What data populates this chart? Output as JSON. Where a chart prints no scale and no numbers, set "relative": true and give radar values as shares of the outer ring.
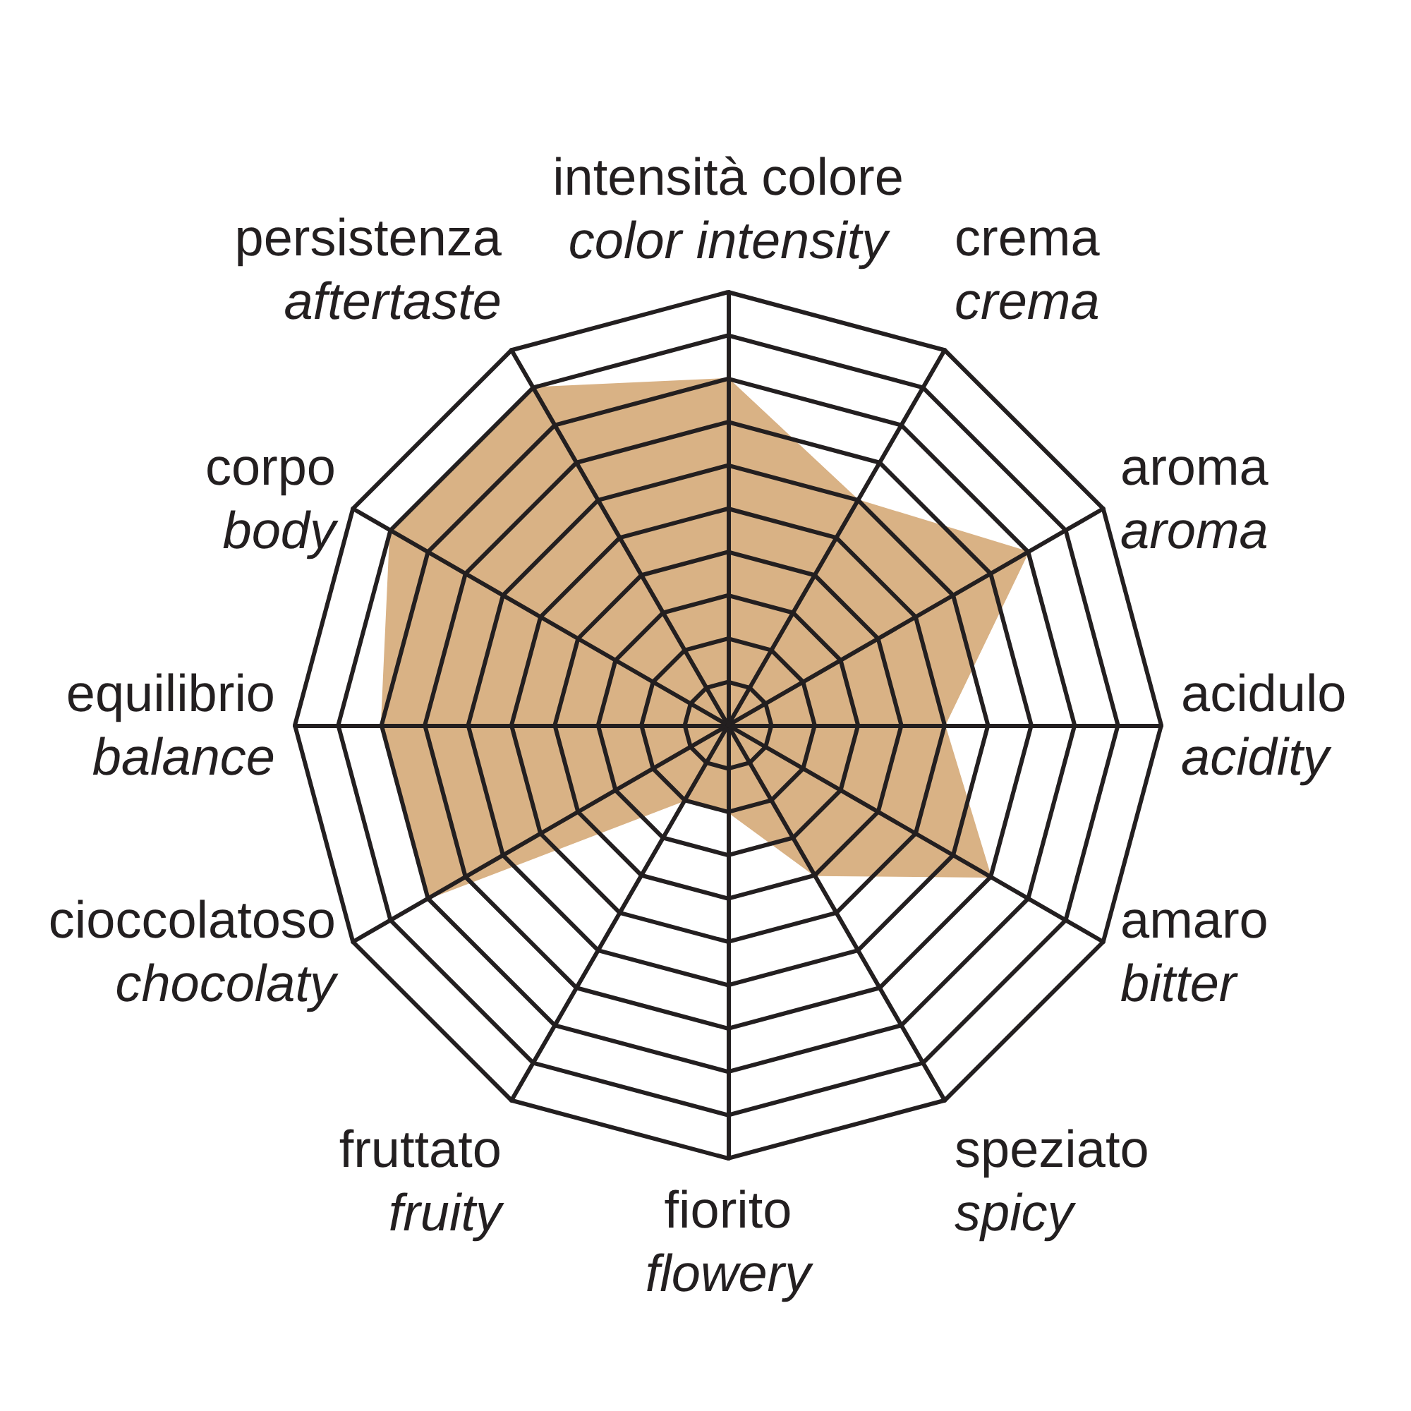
{
  "chart_data": {
    "type": "radar",
    "relative": true,
    "grid": true,
    "marker": "none",
    "categories": [
      "intensità colore\ncolor intensity",
      "crema\ncrema",
      "aroma\naroma",
      "acidulo\nacidity",
      "amaro\nbitter",
      "speziato\nspicy",
      "fiorito\nflowery",
      "fruttato\nfruity",
      "cioccolatoso\nchocolaty",
      "equilibrio\nbalance",
      "corpo\nbody",
      "persistenza\naftertaste"
    ],
    "series": [
      {
        "color": "#d9b285",
        "values": [
          0.8,
          0.6,
          0.8,
          0.5,
          0.7,
          0.4,
          0.2,
          0.2,
          0.8,
          0.8,
          0.9,
          0.9
        ]
      }
    ]
  }
}
